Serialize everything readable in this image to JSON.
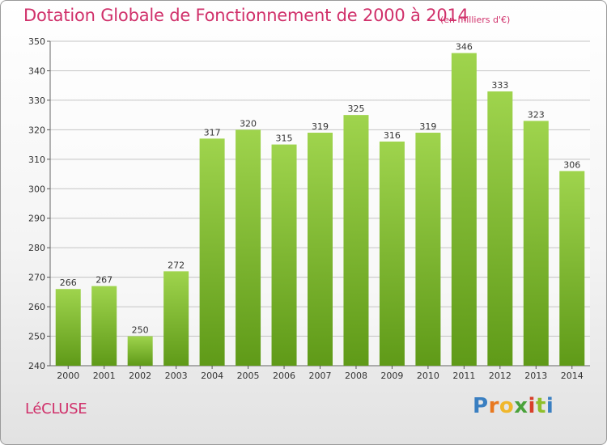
{
  "header": {
    "title": "Dotation Globale de Fonctionnement de 2000 à 2014",
    "unit_note": "(en milliers d'€)"
  },
  "footer": {
    "commune": "LéCLUSE",
    "brand_letters": [
      "P",
      "r",
      "o",
      "x",
      "i",
      "t",
      "i"
    ]
  },
  "colors": {
    "accent": "#d0306a",
    "bar_light": "#9fd44d",
    "bar_dark": "#5f9a18",
    "brand": [
      "#3a7fc1",
      "#e8781f",
      "#f0b72c",
      "#4aa23a",
      "#d8402a",
      "#8fbf2b",
      "#3a7fc1"
    ]
  },
  "chart_data": {
    "type": "bar",
    "categories": [
      "2000",
      "2001",
      "2002",
      "2003",
      "2004",
      "2005",
      "2006",
      "2007",
      "2008",
      "2009",
      "2010",
      "2011",
      "2012",
      "2013",
      "2014"
    ],
    "values": [
      266,
      267,
      250,
      272,
      317,
      320,
      315,
      319,
      325,
      316,
      319,
      346,
      333,
      323,
      306
    ],
    "title": "Dotation Globale de Fonctionnement de 2000 à 2014",
    "subtitle": "(en milliers d'€)",
    "xlabel": "",
    "ylabel": "",
    "ylim": [
      240,
      350
    ],
    "yticks": [
      240,
      250,
      260,
      270,
      280,
      290,
      300,
      310,
      320,
      330,
      340,
      350
    ],
    "grid": true,
    "data_labels": true,
    "legend": "none"
  }
}
